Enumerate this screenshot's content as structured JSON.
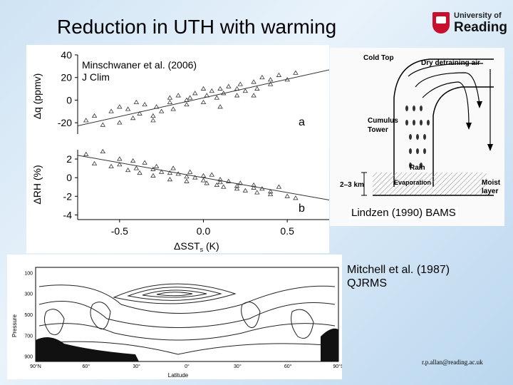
{
  "slide": {
    "title": "Reduction in UTH with warming",
    "logo": {
      "line1": "University of",
      "line2": "Reading"
    },
    "email": "r.p.allan@reading.ac.uk"
  },
  "figure_a": {
    "caption_line1": "Minschwaner et al. (2006)",
    "caption_line2": "J Clim",
    "panel_a_label": "a",
    "panel_b_label": "b",
    "y_label_top": "Δq (ppmv)",
    "y_label_bottom": "ΔRH (%)",
    "x_label": "ΔSST",
    "x_label_sub": "s",
    "x_label_unit": " (K)",
    "top_yticks": [
      "40",
      "20",
      "0",
      "-20"
    ],
    "bottom_yticks": [
      "2",
      "0",
      "-2",
      "-4"
    ],
    "xticks": [
      "-0.5",
      "0.0",
      "0.5"
    ]
  },
  "figure_b": {
    "caption": "Lindzen (1990) BAMS",
    "labels": {
      "cold_top": "Cold Top",
      "dry_air": "Dry detraining air",
      "cumulus_1": "Cumulus",
      "cumulus_2": "Tower",
      "rain": "Rain",
      "depth": "2–3 km",
      "evaporation": "Evaporation",
      "moist_1": "Moist",
      "moist_2": "layer"
    }
  },
  "figure_c": {
    "caption_line1": "Mitchell et al. (1987)",
    "caption_line2": "QJRMS",
    "y_label": "Pressure",
    "x_label": "Latitude",
    "yticks": [
      "100",
      "300",
      "500",
      "700",
      "900"
    ],
    "xticks": [
      "90°N",
      "60°",
      "30°",
      "0°",
      "30°",
      "60°",
      "90°S"
    ]
  },
  "chart_data": {
    "type": "scatter",
    "title": "",
    "panels": [
      {
        "name": "a",
        "ylabel": "Δq (ppmv)",
        "xlabel": "ΔSST (K)",
        "xlim": [
          -0.75,
          0.75
        ],
        "ylim": [
          -30,
          40
        ],
        "fit": {
          "slope": 33,
          "intercept": 2
        },
        "x": [
          -0.7,
          -0.65,
          -0.6,
          -0.55,
          -0.5,
          -0.45,
          -0.42,
          -0.38,
          -0.35,
          -0.3,
          -0.28,
          -0.25,
          -0.2,
          -0.18,
          -0.15,
          -0.1,
          -0.08,
          -0.05,
          0,
          0.02,
          0.05,
          0.08,
          0.1,
          0.12,
          0.15,
          0.2,
          0.22,
          0.25,
          0.3,
          0.32,
          0.35,
          0.4,
          0.45,
          0.5,
          0.55,
          -0.5,
          -0.4,
          -0.3,
          -0.2,
          -0.1,
          0,
          0.1,
          0.2,
          0.3,
          0.4
        ],
        "y": [
          -18,
          -14,
          -22,
          -10,
          -20,
          -8,
          -16,
          -12,
          -4,
          -14,
          -6,
          -10,
          -2,
          -8,
          4,
          -4,
          2,
          6,
          -2,
          4,
          8,
          2,
          10,
          6,
          12,
          4,
          14,
          8,
          16,
          10,
          20,
          14,
          22,
          18,
          24,
          -6,
          -2,
          -18,
          2,
          0,
          10,
          -6,
          10,
          4,
          18
        ]
      },
      {
        "name": "b",
        "ylabel": "ΔRH (%)",
        "xlabel": "ΔSST (K)",
        "xlim": [
          -0.75,
          0.75
        ],
        "ylim": [
          -4.5,
          3
        ],
        "fit": {
          "slope": -3.2,
          "intercept": 0
        },
        "x": [
          -0.7,
          -0.65,
          -0.6,
          -0.55,
          -0.5,
          -0.45,
          -0.42,
          -0.38,
          -0.35,
          -0.3,
          -0.28,
          -0.25,
          -0.2,
          -0.18,
          -0.15,
          -0.1,
          -0.08,
          -0.05,
          0,
          0.02,
          0.05,
          0.08,
          0.1,
          0.12,
          0.15,
          0.2,
          0.22,
          0.25,
          0.3,
          0.32,
          0.35,
          0.4,
          0.45,
          0.5,
          0.55,
          -0.5,
          -0.4,
          -0.3,
          -0.2,
          -0.1,
          0,
          0.1,
          0.2,
          0.3,
          0.4
        ],
        "y": [
          2.5,
          1.5,
          2.8,
          1.2,
          2,
          0.8,
          1.8,
          0.5,
          1.6,
          0.2,
          1.2,
          0.6,
          -0.2,
          1,
          0.4,
          -0.4,
          0.6,
          0,
          0.2,
          -0.6,
          0.3,
          -0.8,
          -0.2,
          -1,
          -0.4,
          -1.2,
          -0.6,
          -1.4,
          -0.8,
          -1.6,
          -1.2,
          -1.8,
          -1,
          -2,
          -2.2,
          1.4,
          1,
          0.9,
          0.5,
          0.1,
          -0.3,
          -0.5,
          -0.9,
          -1.1,
          -1.5
        ]
      }
    ]
  }
}
